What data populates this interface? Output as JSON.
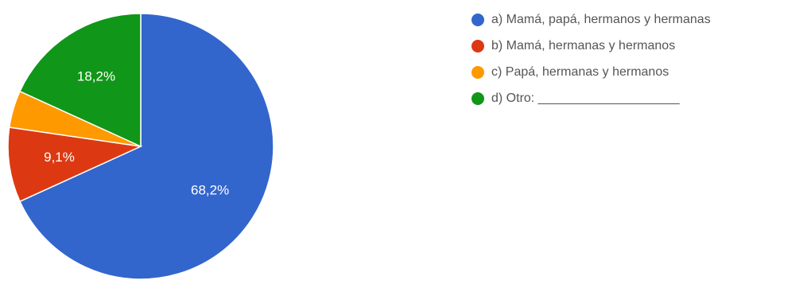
{
  "chart_data": {
    "type": "pie",
    "slices": [
      {
        "label": "a) Mamá, papá, hermanos y hermanas",
        "value": 68.2,
        "display": "68,2%",
        "color": "#3366cc"
      },
      {
        "label": "b) Mamá, hermanas y hermanos",
        "value": 9.1,
        "display": "9,1%",
        "color": "#dc3912"
      },
      {
        "label": "c) Papá, hermanas y hermanos",
        "value": 4.5,
        "display": "",
        "color": "#ff9900"
      },
      {
        "label": "d) Otro: ____________________",
        "value": 18.2,
        "display": "18,2%",
        "color": "#109618"
      }
    ],
    "start_angle_deg": 90,
    "direction": "clockwise",
    "legend_position": "right"
  }
}
